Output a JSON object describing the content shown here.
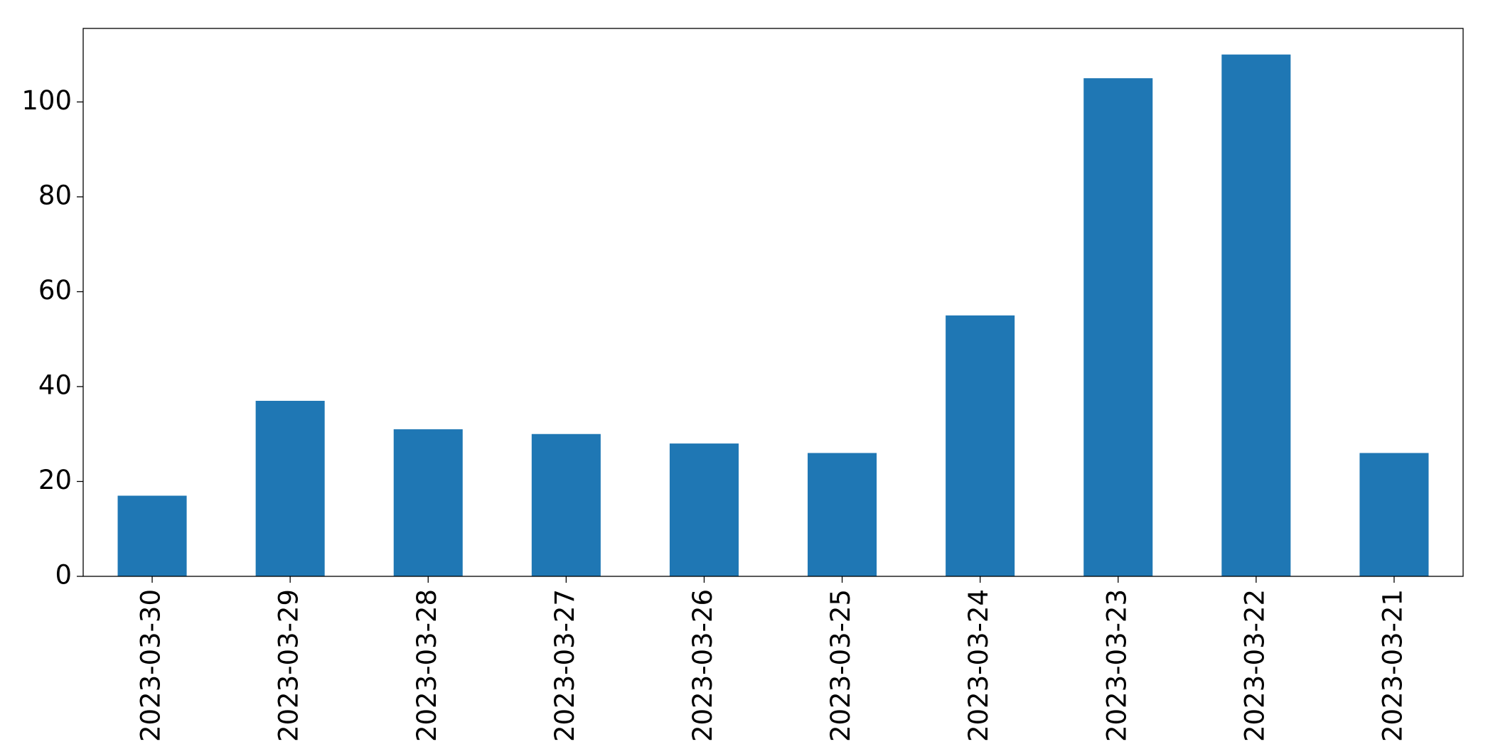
{
  "chart_data": {
    "type": "bar",
    "categories": [
      "2023-03-30",
      "2023-03-29",
      "2023-03-28",
      "2023-03-27",
      "2023-03-26",
      "2023-03-25",
      "2023-03-24",
      "2023-03-23",
      "2023-03-22",
      "2023-03-21"
    ],
    "values": [
      17,
      37,
      31,
      30,
      28,
      26,
      55,
      105,
      110,
      26
    ],
    "color": "#1f77b4",
    "ylim": [
      0,
      115.5
    ],
    "yticks": [
      0,
      20,
      40,
      60,
      80,
      100
    ],
    "grid": false
  }
}
